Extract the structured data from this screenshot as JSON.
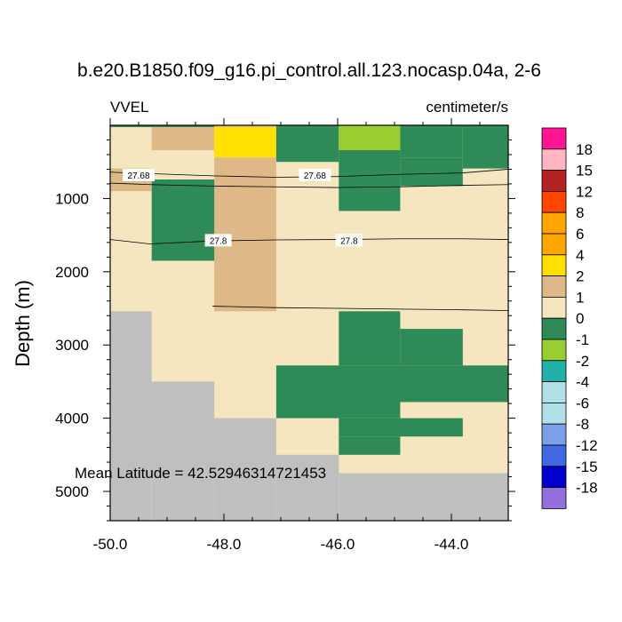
{
  "chart_data": {
    "type": "heatmap",
    "title": "b.e20.B1850.f09_g16.pi_control.all.123.nocasp.04a, 2-6",
    "variable_label": "VVEL",
    "units_label": "centimeter/s",
    "xlabel": "",
    "ylabel": "Depth (m)",
    "xlim": [
      -50.0,
      -43.0
    ],
    "ylim": [
      0,
      5400
    ],
    "x_ticks": [
      -50.0,
      -48.0,
      -46.0,
      -44.0
    ],
    "x_tick_labels": [
      "-50.0",
      "-48.0",
      "-46.0",
      "-44.0"
    ],
    "y_ticks": [
      1000,
      2000,
      3000,
      4000,
      5000
    ],
    "y_tick_labels": [
      "1000",
      "2000",
      "3000",
      "4000",
      "5000"
    ],
    "annotation": "Mean Latitude = 42.52946314721453",
    "missing_color": "#bfbfbf",
    "colorbar": {
      "labels": [
        "18",
        "15",
        "12",
        "8",
        "6",
        "4",
        "2",
        "1",
        "0",
        "-1",
        "-2",
        "-4",
        "-6",
        "-8",
        "-12",
        "-15",
        "-18"
      ],
      "colors": [
        "#ff1493",
        "#ffb6c1",
        "#b22222",
        "#ff4500",
        "#ffa500",
        "#ffa500",
        "#ffe000",
        "#deb887",
        "#f5e6c0",
        "#2e8b57",
        "#9acd32",
        "#20b2aa",
        "#b0e0e6",
        "#b0e0e6",
        "#7b9fe8",
        "#4169e1",
        "#0000cd",
        "#9370db"
      ]
    },
    "column_edges": [
      -50.0,
      -49.27,
      -48.17,
      -47.08,
      -45.98,
      -44.9,
      -43.8,
      -43.0
    ],
    "cells": [
      {
        "x": [
          -50.0,
          -43.0
        ],
        "y": [
          0,
          4750
        ],
        "value": "0"
      },
      {
        "x": [
          -50.0,
          -43.0
        ],
        "y": [
          0,
          25
        ],
        "value": "-1"
      },
      {
        "x": [
          -48.17,
          -47.08
        ],
        "y": [
          0,
          25
        ],
        "value": "1"
      },
      {
        "x": [
          -45.98,
          -44.9
        ],
        "y": [
          0,
          25
        ],
        "value": "-2"
      },
      {
        "x": [
          -49.27,
          -48.17
        ],
        "y": [
          25,
          340
        ],
        "value": "1"
      },
      {
        "x": [
          -48.17,
          -47.08
        ],
        "y": [
          25,
          440
        ],
        "value": "4"
      },
      {
        "x": [
          -47.08,
          -45.98
        ],
        "y": [
          25,
          500
        ],
        "value": "-1"
      },
      {
        "x": [
          -45.98,
          -44.9
        ],
        "y": [
          25,
          340
        ],
        "value": "-2"
      },
      {
        "x": [
          -44.9,
          -43.8
        ],
        "y": [
          25,
          440
        ],
        "value": "-1"
      },
      {
        "x": [
          -43.8,
          -43.0
        ],
        "y": [
          25,
          590
        ],
        "value": "-1"
      },
      {
        "x": [
          -50.0,
          -49.27
        ],
        "y": [
          590,
          900
        ],
        "value": "1"
      },
      {
        "x": [
          -48.17,
          -47.08
        ],
        "y": [
          440,
          2540
        ],
        "value": "1"
      },
      {
        "x": [
          -45.98,
          -44.9
        ],
        "y": [
          340,
          1170
        ],
        "value": "-1"
      },
      {
        "x": [
          -44.9,
          -43.8
        ],
        "y": [
          440,
          830
        ],
        "value": "-1"
      },
      {
        "x": [
          -49.27,
          -48.17
        ],
        "y": [
          740,
          1850
        ],
        "value": "-1"
      },
      {
        "x": [
          -45.98,
          -44.9
        ],
        "y": [
          2540,
          3280
        ],
        "value": "-1"
      },
      {
        "x": [
          -44.9,
          -43.8
        ],
        "y": [
          2780,
          3280
        ],
        "value": "-1"
      },
      {
        "x": [
          -47.08,
          -43.0
        ],
        "y": [
          3280,
          3780
        ],
        "value": "-1"
      },
      {
        "x": [
          -47.08,
          -44.9
        ],
        "y": [
          3780,
          4000
        ],
        "value": "-1"
      },
      {
        "x": [
          -45.98,
          -43.8
        ],
        "y": [
          4000,
          4250
        ],
        "value": "-1"
      },
      {
        "x": [
          -45.98,
          -44.9
        ],
        "y": [
          4250,
          4500
        ],
        "value": "-1"
      },
      {
        "x": [
          -50.0,
          -49.27
        ],
        "y": [
          2540,
          5400
        ],
        "value": "missing"
      },
      {
        "x": [
          -49.27,
          -48.17
        ],
        "y": [
          3500,
          5400
        ],
        "value": "missing"
      },
      {
        "x": [
          -48.17,
          -47.08
        ],
        "y": [
          4000,
          5400
        ],
        "value": "missing"
      },
      {
        "x": [
          -47.08,
          -45.98
        ],
        "y": [
          4500,
          5400
        ],
        "value": "missing"
      },
      {
        "x": [
          -45.98,
          -43.0
        ],
        "y": [
          4750,
          5400
        ],
        "value": "missing"
      }
    ],
    "contours": [
      {
        "level": "27.68",
        "label_x": [
          -49.5,
          -46.4
        ],
        "label_y": 680,
        "points": [
          [
            -50.0,
            640
          ],
          [
            -49.3,
            660
          ],
          [
            -48.2,
            690
          ],
          [
            -47.1,
            710
          ],
          [
            -46.0,
            700
          ],
          [
            -44.9,
            670
          ],
          [
            -43.8,
            650
          ],
          [
            -43.0,
            600
          ]
        ]
      },
      {
        "level": "",
        "label_x": [],
        "label_y": 0,
        "points": [
          [
            -50.0,
            790
          ],
          [
            -49.3,
            810
          ],
          [
            -48.2,
            830
          ],
          [
            -47.1,
            840
          ],
          [
            -46.0,
            850
          ],
          [
            -44.9,
            840
          ],
          [
            -43.8,
            820
          ],
          [
            -43.0,
            810
          ]
        ]
      },
      {
        "level": "27.8",
        "label_x": [
          -48.1,
          -45.8
        ],
        "label_y": 1570,
        "points": [
          [
            -50.0,
            1560
          ],
          [
            -49.3,
            1620
          ],
          [
            -48.2,
            1580
          ],
          [
            -47.1,
            1565
          ],
          [
            -46.0,
            1560
          ],
          [
            -44.9,
            1550
          ],
          [
            -43.8,
            1550
          ],
          [
            -43.0,
            1560
          ]
        ]
      },
      {
        "level": "",
        "label_x": [],
        "label_y": 0,
        "points": [
          [
            -48.2,
            2470
          ],
          [
            -47.1,
            2490
          ],
          [
            -46.0,
            2500
          ],
          [
            -44.9,
            2510
          ],
          [
            -43.8,
            2520
          ],
          [
            -43.0,
            2530
          ]
        ]
      }
    ]
  }
}
